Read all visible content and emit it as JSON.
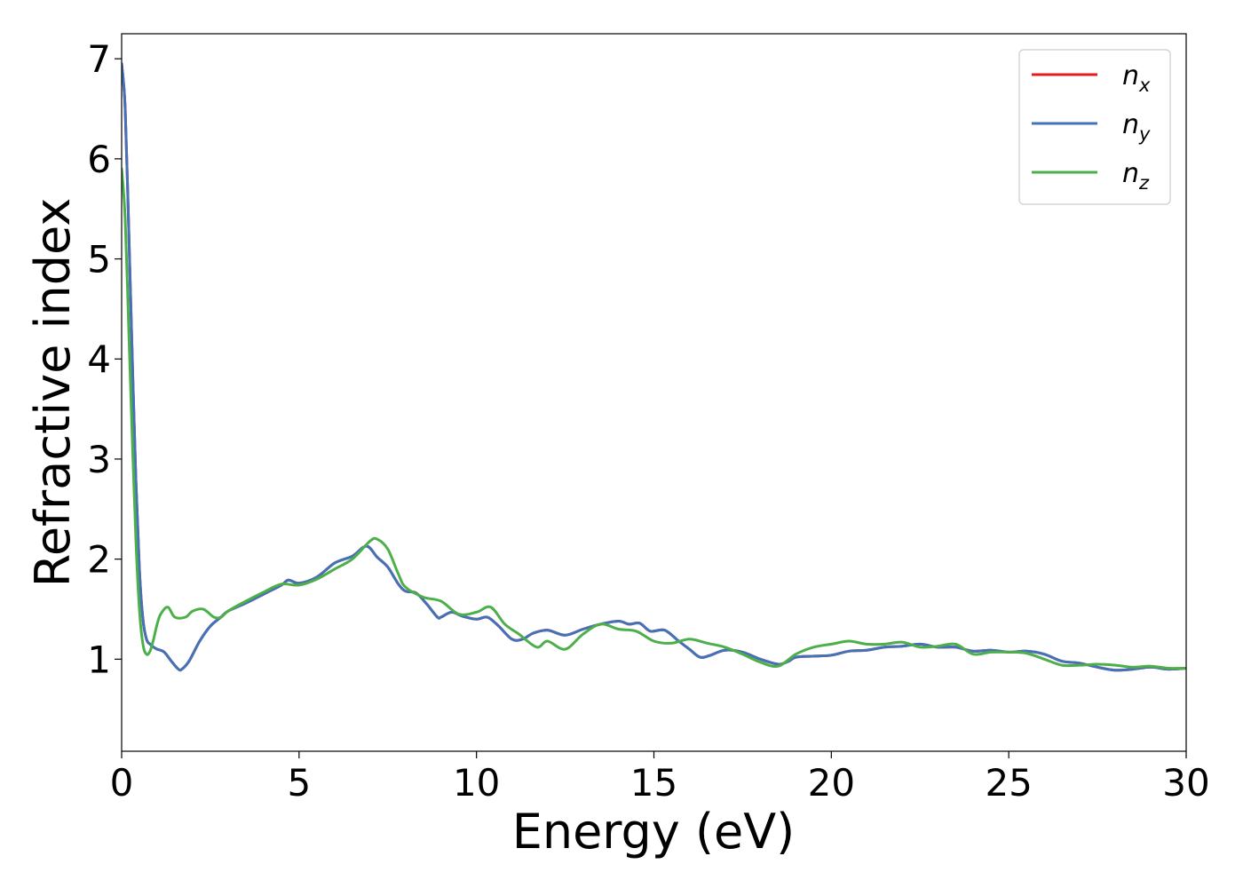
{
  "chart_data": {
    "type": "line",
    "xlabel": "Energy (eV)",
    "ylabel": "Refractive index",
    "xlim": [
      0,
      30
    ],
    "ylim": [
      0.08,
      7.25
    ],
    "xticks": [
      "0",
      "5",
      "10",
      "15",
      "20",
      "25",
      "30"
    ],
    "yticks": [
      "1",
      "2",
      "3",
      "4",
      "5",
      "6",
      "7"
    ],
    "grid": false,
    "legend_position": "top-right",
    "series": [
      {
        "name": "n_x",
        "legend_base": "n",
        "legend_sub": "x",
        "color": "#e41a1c",
        "x": [
          0,
          0.1,
          0.2,
          0.3,
          0.4,
          0.5,
          0.6,
          0.7,
          0.8,
          0.9,
          1.0,
          1.2,
          1.4,
          1.6,
          1.7,
          1.9,
          2.2,
          2.5,
          2.8,
          3.0,
          3.5,
          4.0,
          4.5,
          4.7,
          5.0,
          5.5,
          6.0,
          6.5,
          6.9,
          7.2,
          7.5,
          7.8,
          8.0,
          8.3,
          8.6,
          8.9,
          9.0,
          9.3,
          9.6,
          10.0,
          10.3,
          10.6,
          11.0,
          11.3,
          11.6,
          12.0,
          12.5,
          13.0,
          13.5,
          14.0,
          14.3,
          14.6,
          14.9,
          15.3,
          15.7,
          16.0,
          16.3,
          16.6,
          17.0,
          17.5,
          18.0,
          18.5,
          18.8,
          19.0,
          19.5,
          20.0,
          20.5,
          21.0,
          21.5,
          22.0,
          22.5,
          23.0,
          23.5,
          24.0,
          24.5,
          25.0,
          25.5,
          26.0,
          26.5,
          27.0,
          27.5,
          28.0,
          28.5,
          29.0,
          29.5,
          30.0
        ],
        "values": [
          6.95,
          6.5,
          5.3,
          4.0,
          2.8,
          1.9,
          1.4,
          1.2,
          1.15,
          1.12,
          1.1,
          1.07,
          0.98,
          0.9,
          0.9,
          0.98,
          1.18,
          1.33,
          1.42,
          1.48,
          1.56,
          1.65,
          1.74,
          1.79,
          1.76,
          1.82,
          1.96,
          2.03,
          2.13,
          2.02,
          1.92,
          1.75,
          1.68,
          1.66,
          1.55,
          1.42,
          1.42,
          1.47,
          1.43,
          1.4,
          1.42,
          1.34,
          1.2,
          1.2,
          1.26,
          1.29,
          1.24,
          1.3,
          1.35,
          1.38,
          1.35,
          1.36,
          1.28,
          1.29,
          1.18,
          1.1,
          1.02,
          1.04,
          1.09,
          1.07,
          1.0,
          0.95,
          0.98,
          1.02,
          1.03,
          1.04,
          1.08,
          1.09,
          1.12,
          1.13,
          1.15,
          1.12,
          1.12,
          1.08,
          1.09,
          1.07,
          1.08,
          1.05,
          0.98,
          0.96,
          0.92,
          0.89,
          0.9,
          0.92,
          0.9,
          0.91
        ]
      },
      {
        "name": "n_y",
        "legend_base": "n",
        "legend_sub": "y",
        "color": "#4472b8",
        "x": [
          0,
          0.1,
          0.2,
          0.3,
          0.4,
          0.5,
          0.6,
          0.7,
          0.8,
          0.9,
          1.0,
          1.2,
          1.4,
          1.6,
          1.7,
          1.9,
          2.2,
          2.5,
          2.8,
          3.0,
          3.5,
          4.0,
          4.5,
          4.7,
          5.0,
          5.5,
          6.0,
          6.5,
          6.9,
          7.2,
          7.5,
          7.8,
          8.0,
          8.3,
          8.6,
          8.9,
          9.0,
          9.3,
          9.6,
          10.0,
          10.3,
          10.6,
          11.0,
          11.3,
          11.6,
          12.0,
          12.5,
          13.0,
          13.5,
          14.0,
          14.3,
          14.6,
          14.9,
          15.3,
          15.7,
          16.0,
          16.3,
          16.6,
          17.0,
          17.5,
          18.0,
          18.5,
          18.8,
          19.0,
          19.5,
          20.0,
          20.5,
          21.0,
          21.5,
          22.0,
          22.5,
          23.0,
          23.5,
          24.0,
          24.5,
          25.0,
          25.5,
          26.0,
          26.5,
          27.0,
          27.5,
          28.0,
          28.5,
          29.0,
          29.5,
          30.0
        ],
        "values": [
          6.95,
          6.5,
          5.3,
          4.0,
          2.8,
          1.9,
          1.4,
          1.2,
          1.15,
          1.12,
          1.1,
          1.07,
          0.98,
          0.9,
          0.9,
          0.98,
          1.18,
          1.33,
          1.42,
          1.48,
          1.56,
          1.65,
          1.74,
          1.79,
          1.76,
          1.82,
          1.96,
          2.03,
          2.13,
          2.02,
          1.92,
          1.75,
          1.68,
          1.66,
          1.55,
          1.42,
          1.42,
          1.47,
          1.43,
          1.4,
          1.42,
          1.34,
          1.2,
          1.2,
          1.26,
          1.29,
          1.24,
          1.3,
          1.35,
          1.38,
          1.35,
          1.36,
          1.28,
          1.29,
          1.18,
          1.1,
          1.02,
          1.04,
          1.09,
          1.07,
          1.0,
          0.95,
          0.98,
          1.02,
          1.03,
          1.04,
          1.08,
          1.09,
          1.12,
          1.13,
          1.15,
          1.12,
          1.12,
          1.08,
          1.09,
          1.07,
          1.08,
          1.05,
          0.98,
          0.96,
          0.92,
          0.89,
          0.9,
          0.92,
          0.9,
          0.91
        ]
      },
      {
        "name": "n_z",
        "legend_base": "n",
        "legend_sub": "z",
        "color": "#4daf4a",
        "x": [
          0,
          0.1,
          0.2,
          0.3,
          0.4,
          0.5,
          0.6,
          0.7,
          0.8,
          0.9,
          1.0,
          1.1,
          1.3,
          1.5,
          1.8,
          2.0,
          2.3,
          2.6,
          2.8,
          3.0,
          3.5,
          4.0,
          4.5,
          5.0,
          5.5,
          6.0,
          6.5,
          7.0,
          7.2,
          7.5,
          7.8,
          8.0,
          8.5,
          9.0,
          9.5,
          10.0,
          10.4,
          10.8,
          11.2,
          11.7,
          12.0,
          12.5,
          13.0,
          13.5,
          14.0,
          14.5,
          15.0,
          15.5,
          16.0,
          16.5,
          17.0,
          17.5,
          18.0,
          18.5,
          19.0,
          19.5,
          20.0,
          20.5,
          21.0,
          21.5,
          22.0,
          22.5,
          23.0,
          23.5,
          24.0,
          24.5,
          25.0,
          25.5,
          26.0,
          26.5,
          27.0,
          27.5,
          28.0,
          28.5,
          29.0,
          29.5,
          30.0
        ],
        "values": [
          5.9,
          5.4,
          4.3,
          3.2,
          2.2,
          1.5,
          1.15,
          1.05,
          1.08,
          1.2,
          1.35,
          1.45,
          1.52,
          1.42,
          1.42,
          1.48,
          1.5,
          1.42,
          1.42,
          1.48,
          1.58,
          1.67,
          1.75,
          1.74,
          1.8,
          1.9,
          2.0,
          2.18,
          2.2,
          2.1,
          1.85,
          1.72,
          1.62,
          1.58,
          1.45,
          1.47,
          1.52,
          1.35,
          1.25,
          1.12,
          1.18,
          1.1,
          1.25,
          1.35,
          1.3,
          1.28,
          1.18,
          1.16,
          1.2,
          1.16,
          1.12,
          1.05,
          0.97,
          0.93,
          1.05,
          1.12,
          1.15,
          1.18,
          1.15,
          1.15,
          1.17,
          1.12,
          1.13,
          1.15,
          1.05,
          1.07,
          1.07,
          1.06,
          1.0,
          0.94,
          0.94,
          0.95,
          0.94,
          0.92,
          0.93,
          0.91,
          0.91
        ]
      }
    ]
  }
}
